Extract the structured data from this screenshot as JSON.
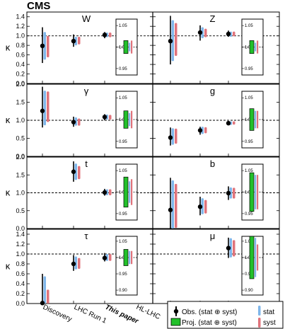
{
  "figure": {
    "label": "CMS",
    "colors": {
      "stat": "#7fb6ea",
      "syst": "#e0737b",
      "proj": "#22c02a",
      "obs": "#000000"
    }
  },
  "legend": {
    "obs": "Obs. (stat ⊕ syst)",
    "proj": "Proj. (stat ⊕ syst)",
    "stat": "stat",
    "syst": "syst"
  },
  "chart_data": {
    "type": "scatter",
    "ylabel": "κ",
    "categories": [
      "Discovery",
      "LHC Run 1",
      "This paper",
      "HL-LHC"
    ],
    "reference_line": 1.0,
    "panels": [
      {
        "row": 0,
        "col": 0,
        "title": "W",
        "ylim": [
          0,
          1.5
        ],
        "yticks": [
          0,
          0.2,
          0.4,
          0.6,
          0.8,
          1.0,
          1.2,
          1.4
        ],
        "points": [
          {
            "category": "Discovery",
            "value": 0.79,
            "total": [
              0.43,
              1.18
            ],
            "stat": [
              0.5,
              1.08
            ],
            "syst": [
              0.55,
              1.0
            ]
          },
          {
            "category": "LHC Run 1",
            "value": 0.89,
            "total": [
              0.77,
              1.03
            ],
            "stat": [
              0.8,
              0.98
            ],
            "syst": [
              0.82,
              0.98
            ]
          },
          {
            "category": "This paper",
            "value": 1.02,
            "total": [
              0.95,
              1.08
            ],
            "stat": [
              0.97,
              1.07
            ],
            "syst": [
              0.97,
              1.07
            ]
          }
        ],
        "projection": {
          "ticks": [
            0.95,
            1.0,
            1.05
          ],
          "total": [
            0.985,
            1.015
          ],
          "stat": [
            0.99,
            1.01
          ],
          "syst": [
            0.985,
            1.015
          ]
        }
      },
      {
        "row": 0,
        "col": 1,
        "title": "Z",
        "ylim": [
          0,
          1.5
        ],
        "yticks": [],
        "points": [
          {
            "category": "Discovery",
            "value": 0.89,
            "total": [
              0.4,
              1.42
            ],
            "stat": [
              0.47,
              1.33
            ],
            "syst": [
              0.58,
              1.27
            ]
          },
          {
            "category": "LHC Run 1",
            "value": 1.07,
            "total": [
              0.9,
              1.22
            ],
            "stat": [
              0.95,
              1.18
            ],
            "syst": [
              0.97,
              1.15
            ]
          },
          {
            "category": "This paper",
            "value": 1.04,
            "total": [
              0.98,
              1.11
            ],
            "stat": [
              0.98,
              1.09
            ],
            "syst": [
              0.99,
              1.09
            ]
          }
        ],
        "projection": {
          "ticks": [
            0.95,
            1.0,
            1.05
          ],
          "total": [
            0.985,
            1.015
          ],
          "stat": [
            0.99,
            1.01
          ],
          "syst": [
            0.985,
            1.015
          ]
        }
      },
      {
        "row": 1,
        "col": 0,
        "title": "γ",
        "ylim": [
          0,
          2.0
        ],
        "yticks": [
          0,
          0.5,
          1.0,
          1.5,
          2.0
        ],
        "points": [
          {
            "category": "Discovery",
            "value": 1.26,
            "total": [
              0.8,
              1.93
            ],
            "stat": [
              0.86,
              1.82
            ],
            "syst": [
              0.95,
              1.8
            ]
          },
          {
            "category": "LHC Run 1",
            "value": 0.95,
            "total": [
              0.82,
              1.1
            ],
            "stat": [
              0.85,
              1.08
            ],
            "syst": [
              0.85,
              1.05
            ]
          },
          {
            "category": "This paper",
            "value": 1.09,
            "total": [
              1.0,
              1.17
            ],
            "stat": [
              1.02,
              1.16
            ],
            "syst": [
              1.02,
              1.15
            ]
          }
        ],
        "projection": {
          "ticks": [
            0.95,
            1.0,
            1.05
          ],
          "total": [
            0.98,
            1.02
          ],
          "stat": [
            0.985,
            1.015
          ],
          "syst": [
            0.98,
            1.02
          ]
        }
      },
      {
        "row": 1,
        "col": 1,
        "title": "g",
        "ylim": [
          0,
          2.0
        ],
        "yticks": [],
        "points": [
          {
            "category": "Discovery",
            "value": 0.52,
            "total": [
              0.3,
              0.8
            ],
            "stat": [
              0.32,
              0.78
            ],
            "syst": [
              0.35,
              0.77
            ]
          },
          {
            "category": "LHC Run 1",
            "value": 0.72,
            "total": [
              0.6,
              0.82
            ],
            "stat": [
              0.62,
              0.82
            ],
            "syst": [
              0.64,
              0.81
            ]
          },
          {
            "category": "This paper",
            "value": 0.92,
            "total": [
              0.86,
              0.97
            ],
            "stat": [
              0.87,
              0.97
            ],
            "syst": [
              0.88,
              0.97
            ]
          }
        ],
        "projection": {
          "ticks": [
            0.95,
            1.0,
            1.05
          ],
          "total": [
            0.975,
            1.025
          ],
          "stat": [
            0.98,
            1.02
          ],
          "syst": [
            0.98,
            1.02
          ]
        }
      },
      {
        "row": 2,
        "col": 0,
        "title": "t",
        "ylim": [
          0,
          2.0
        ],
        "yticks": [
          0,
          0.5,
          1.0,
          1.5,
          2.0
        ],
        "points": [
          {
            "category": "LHC Run 1",
            "value": 1.59,
            "total": [
              1.31,
              1.88
            ],
            "stat": [
              1.36,
              1.82
            ],
            "syst": [
              1.38,
              1.75
            ]
          },
          {
            "category": "This paper",
            "value": 1.01,
            "total": [
              0.92,
              1.11
            ],
            "stat": [
              0.93,
              1.1
            ],
            "syst": [
              0.93,
              1.1
            ]
          }
        ],
        "projection": {
          "ticks": [
            0.95,
            1.0,
            1.05
          ],
          "total": [
            0.965,
            1.035
          ],
          "stat": [
            0.975,
            1.025
          ],
          "syst": [
            0.97,
            1.03
          ]
        }
      },
      {
        "row": 2,
        "col": 1,
        "title": "b",
        "ylim": [
          0,
          2.0
        ],
        "yticks": [],
        "points": [
          {
            "category": "Discovery",
            "value": 0.52,
            "total": [
              0.0,
              1.42
            ],
            "stat": [
              0.0,
              1.35
            ],
            "syst": [
              0.02,
              1.25
            ]
          },
          {
            "category": "LHC Run 1",
            "value": 0.61,
            "total": [
              0.37,
              0.89
            ],
            "stat": [
              0.4,
              0.85
            ],
            "syst": [
              0.42,
              0.8
            ]
          },
          {
            "category": "This paper",
            "value": 0.99,
            "total": [
              0.8,
              1.18
            ],
            "stat": [
              0.84,
              1.15
            ],
            "syst": [
              0.84,
              1.14
            ]
          }
        ],
        "projection": {
          "ticks": [
            0.95,
            1.0,
            1.05
          ],
          "total": [
            0.955,
            1.045
          ],
          "stat": [
            0.96,
            1.04
          ],
          "syst": [
            0.96,
            1.04
          ]
        }
      },
      {
        "row": 3,
        "col": 0,
        "title": "τ",
        "ylim": [
          0,
          1.5
        ],
        "yticks": [
          0,
          0.2,
          0.4,
          0.6,
          0.8,
          1.0,
          1.2,
          1.4
        ],
        "points": [
          {
            "category": "Discovery",
            "value": 0.01,
            "total": [
              0.0,
              0.6
            ],
            "stat": [
              0.0,
              0.55
            ],
            "syst": [
              0.0,
              0.28
            ]
          },
          {
            "category": "LHC Run 1",
            "value": 0.8,
            "total": [
              0.66,
              0.98
            ],
            "stat": [
              0.69,
              0.95
            ],
            "syst": [
              0.7,
              0.92
            ]
          },
          {
            "category": "This paper",
            "value": 0.92,
            "total": [
              0.85,
              1.02
            ],
            "stat": [
              0.86,
              1.0
            ],
            "syst": [
              0.86,
              1.0
            ]
          }
        ],
        "projection": {
          "ticks": [
            0.9,
            0.95,
            1.0,
            1.05
          ],
          "total": [
            0.975,
            1.025
          ],
          "stat": [
            0.98,
            1.02
          ],
          "syst": [
            0.98,
            1.02
          ]
        }
      },
      {
        "row": 3,
        "col": 1,
        "title": "μ",
        "ylim": [
          0,
          1.5
        ],
        "yticks": [],
        "points": [
          {
            "category": "This paper",
            "value": 1.12,
            "total": [
              0.92,
              1.33
            ],
            "stat": [
              0.93,
              1.32
            ],
            "syst": [
              0.95,
              1.28
            ]
          }
        ],
        "projection": {
          "ticks": [
            0.9,
            0.95,
            1.0,
            1.05
          ],
          "total": [
            0.935,
            1.065
          ],
          "stat": [
            0.94,
            1.06
          ],
          "syst": [
            0.96,
            1.04
          ]
        }
      }
    ]
  }
}
